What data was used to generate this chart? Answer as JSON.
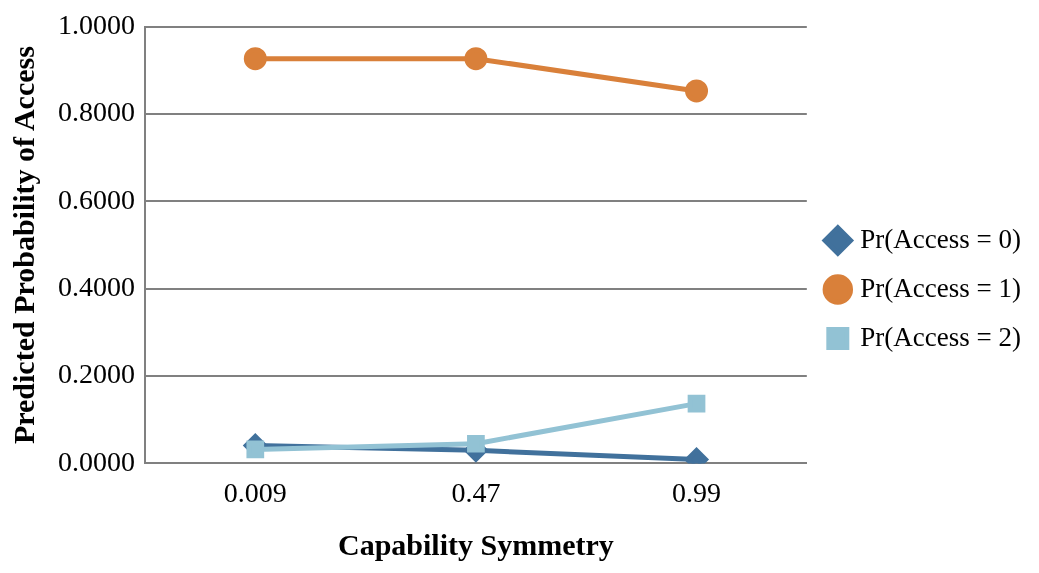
{
  "chart_data": {
    "type": "line",
    "xlabel": "Capability Symmetry",
    "ylabel": "Predicted Probability of Access",
    "categories": [
      "0.009",
      "0.47",
      "0.99"
    ],
    "series": [
      {
        "name": "Pr(Access = 0)",
        "color": "#41719c",
        "marker": "diamond",
        "values": [
          0.041,
          0.03,
          0.009
        ]
      },
      {
        "name": "Pr(Access = 1)",
        "color": "#d9803a",
        "marker": "circle",
        "values": [
          0.927,
          0.927,
          0.853
        ]
      },
      {
        "name": "Pr(Access = 2)",
        "color": "#92c2d4",
        "marker": "square",
        "values": [
          0.032,
          0.045,
          0.137
        ]
      }
    ],
    "ylim": [
      0,
      1
    ],
    "yticks": [
      {
        "value": 0,
        "label": "0.0000"
      },
      {
        "value": 0.2,
        "label": "0.2000"
      },
      {
        "value": 0.4,
        "label": "0.4000"
      },
      {
        "value": 0.6,
        "label": "0.6000"
      },
      {
        "value": 0.8,
        "label": "0.8000"
      },
      {
        "value": 1,
        "label": "1.0000"
      }
    ],
    "grid": "y",
    "legend": "right",
    "line_style": "solid"
  }
}
